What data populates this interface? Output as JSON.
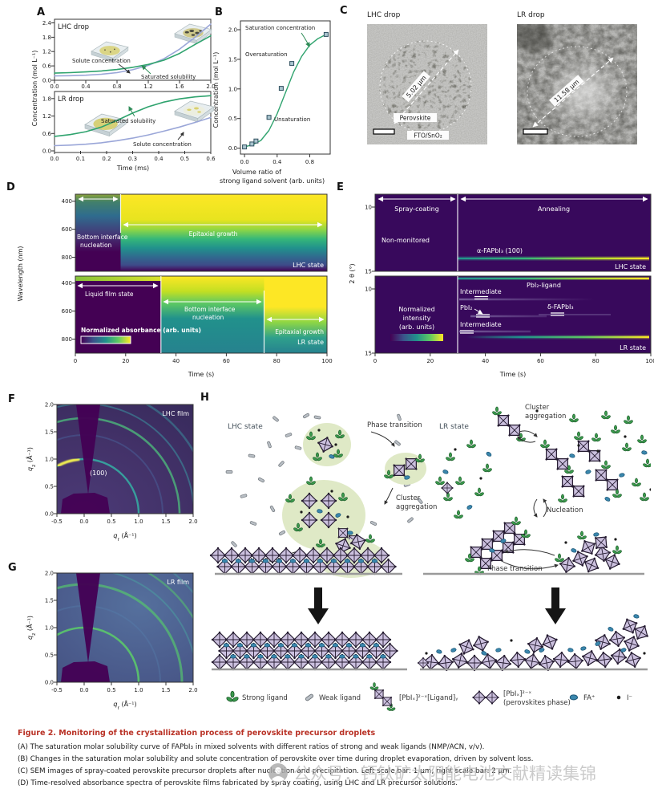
{
  "panels": {
    "a": "A",
    "b": "B",
    "c": "C",
    "d": "D",
    "e": "E",
    "f": "F",
    "g": "G",
    "h": "H"
  },
  "colors": {
    "caption_red": "#b93226",
    "curve_green": "#2fa36e",
    "curve_blue": "#9aa6d8",
    "viridis": [
      "#440154",
      "#3b528b",
      "#21918c",
      "#5ec962",
      "#fde725"
    ],
    "annotation_white": "#ffffff",
    "cluster_halo": "#dfe9c6",
    "strong_ligand_green": "#3a9a4c",
    "weak_ligand_gray": "#b9bfc5",
    "fa_blue": "#3a87ad",
    "octahedron_purple": "#cbc0de"
  },
  "panel_a": {
    "ylabel": "Concentration (mol L⁻¹)",
    "xlabel": "Time (ms)",
    "lhc": {
      "title": "LHC drop",
      "yticks": [
        "0.0",
        "0.6",
        "1.2",
        "1.8",
        "2.4"
      ],
      "xticks": [
        "0.0",
        "0.4",
        "0.8",
        "1.2",
        "1.6",
        "2.0"
      ],
      "solute_label": "Solute concentration",
      "saturated_label": "Saturated solubility"
    },
    "lr": {
      "title": "LR drop",
      "yticks": [
        "0.0",
        "0.6",
        "1.2",
        "1.8"
      ],
      "xticks": [
        "0.0",
        "0.1",
        "0.2",
        "0.3",
        "0.4",
        "0.5",
        "0.6"
      ],
      "saturated_label": "Saturated solubility",
      "solute_label": "Solute concentration"
    }
  },
  "panel_b": {
    "ylabel": "Concentration (mol L⁻¹)",
    "xlabel_line1": "Volume ratio of",
    "xlabel_line2": "strong ligand solvent (arb. units)",
    "yticks": [
      "0.0",
      "0.5",
      "1.0",
      "1.5",
      "2.0"
    ],
    "xticks": [
      "0.0",
      "0.4",
      "0.8"
    ],
    "saturation_label": "Saturation concentration",
    "oversaturation_label": "Oversaturation",
    "unsaturation_label": "Unsaturation"
  },
  "panel_c": {
    "lhc_title": "LHC drop",
    "lr_title": "LR drop",
    "lhc_diameter": "5.02 μm",
    "lr_diameter": "11.58 μm",
    "perovskite_label": "Perovskite",
    "substrate_label": "FTO/SnO₂"
  },
  "panel_d": {
    "ylabel": "Wavelength (nm)",
    "xlabel": "Time (s)",
    "yticks": [
      "400",
      "600",
      "800"
    ],
    "xticks": [
      "0",
      "20",
      "40",
      "60",
      "80",
      "100"
    ],
    "lhc": {
      "nucleation_l1": "Bottom interface",
      "nucleation_l2": "nucleation",
      "epitaxial": "Epitaxial growth",
      "state": "LHC state"
    },
    "lr": {
      "liquid": "Liquid film state",
      "nucleation_l1": "Bottom interface",
      "nucleation_l2": "nucleation",
      "epitaxial": "Epitaxial growth",
      "state": "LR state"
    },
    "colorbar_label": "Normalized absorbance (arb. units)"
  },
  "panel_e": {
    "ylabel": "2 θ (°)",
    "xlabel": "Time (s)",
    "yticks": [
      "10",
      "15"
    ],
    "xticks": [
      "0",
      "20",
      "40",
      "60",
      "80",
      "100"
    ],
    "lhc": {
      "spray": "Spray-coating",
      "annealing": "Annealing",
      "non_monitored": "Non-monitored",
      "alpha_peak": "α-FAPbI₃ (100)",
      "state": "LHC state"
    },
    "lr": {
      "pbi2_ligand": "PbI₂-ligand",
      "intermediate_1": "Intermediate",
      "pbi2": "PbI₂",
      "delta_phase": "δ-FAPbI₃",
      "intermediate_2": "Intermediate",
      "state": "LR state"
    },
    "colorbar_l1": "Normalized",
    "colorbar_l2": "intensity",
    "colorbar_l3": "(arb. units)"
  },
  "panel_f": {
    "title": "LHC film",
    "peak_label": "(100)",
    "ylabel_q": "q",
    "ylabel_sub": "z",
    "ylabel_unit": " (Å⁻¹)",
    "xlabel_q": "q",
    "xlabel_sub": "r",
    "xlabel_unit": " (Å⁻¹)",
    "yticks": [
      "0.0",
      "0.5",
      "1.0",
      "1.5",
      "2.0"
    ],
    "xticks": [
      "-0.5",
      "0.0",
      "0.5",
      "1.0",
      "1.5",
      "2.0"
    ]
  },
  "panel_g": {
    "title": "LR film",
    "ylabel_q": "q",
    "ylabel_sub": "z",
    "ylabel_unit": " (Å⁻¹)",
    "xlabel_q": "q",
    "xlabel_sub": "r",
    "xlabel_unit": " (Å⁻¹)",
    "yticks": [
      "0.0",
      "0.5",
      "1.0",
      "1.5",
      "2.0"
    ],
    "xticks": [
      "-0.5",
      "0.0",
      "0.5",
      "1.0",
      "1.5",
      "2.0"
    ]
  },
  "panel_h": {
    "lhc_state": "LHC state",
    "lr_state": "LR state",
    "phase_transition": "Phase transition",
    "cluster_l1": "Cluster",
    "cluster_l2": "aggregation",
    "nucleation": "Nucleation",
    "legend": {
      "strong_ligand": "Strong ligand",
      "weak_ligand": "Weak ligand",
      "complex": "[PbIₓ]²⁻ˣ[Ligand]ᵧ",
      "perovskite_l1": "[PbIₓ]²⁻ˣ",
      "perovskite_l2": "(perovskites phase)",
      "fa_cation": "FA⁺",
      "iodide": "I⁻"
    }
  },
  "caption": {
    "title": "Figure 2. Monitoring of the crystallization process of perovskite precursor droplets",
    "line_a": "(A) The saturation molar solubility curve of FAPbI₃ in mixed solvents with different ratios of strong and weak ligands (NMP/ACN, v/v).",
    "line_b": "(B) Changes in the saturation molar solubility and solute concentration of perovskite over time during droplet evaporation, driven by solvent loss.",
    "line_c": "(C) SEM images of spray-coated perovskite precursor droplets after nucleation and precipitation. Left scale bar: 1 μm; right scale bar: 2 μm.",
    "line_d": "(D) Time-resolved absorbance spectra of perovskite films fabricated by spray coating, using LHC and LR precursor solutions."
  },
  "watermark": {
    "text": "公众号：钙钛矿太阳能电池文献精读集锦"
  },
  "chart_data": [
    {
      "type": "line",
      "panel": "A-top",
      "title": "LHC drop",
      "xlabel": "Time (ms)",
      "ylabel": "Concentration (mol L⁻¹)",
      "xlim": [
        0,
        2.0
      ],
      "ylim": [
        0,
        2.55
      ],
      "series": [
        {
          "name": "Solute concentration",
          "x": [
            0,
            0.2,
            0.4,
            0.6,
            0.8,
            1.0,
            1.2,
            1.4,
            1.6,
            1.8,
            2.0
          ],
          "y": [
            0.18,
            0.19,
            0.21,
            0.25,
            0.32,
            0.44,
            0.62,
            0.9,
            1.3,
            1.8,
            2.35
          ]
        },
        {
          "name": "Saturated solubility",
          "x": [
            0,
            0.2,
            0.4,
            0.6,
            0.8,
            1.0,
            1.2,
            1.4,
            1.6,
            1.8,
            2.0
          ],
          "y": [
            0.3,
            0.32,
            0.35,
            0.39,
            0.45,
            0.54,
            0.66,
            0.84,
            1.12,
            1.5,
            1.86
          ]
        }
      ]
    },
    {
      "type": "line",
      "panel": "A-bottom",
      "title": "LR drop",
      "xlabel": "Time (ms)",
      "ylabel": "Concentration (mol L⁻¹)",
      "xlim": [
        0,
        0.6
      ],
      "ylim": [
        0,
        2.1
      ],
      "series": [
        {
          "name": "Saturated solubility",
          "x": [
            0,
            0.06,
            0.12,
            0.18,
            0.24,
            0.3,
            0.36,
            0.42,
            0.48,
            0.54,
            0.6
          ],
          "y": [
            0.5,
            0.56,
            0.66,
            0.82,
            1.05,
            1.3,
            1.52,
            1.68,
            1.79,
            1.86,
            1.9
          ]
        },
        {
          "name": "Solute concentration",
          "x": [
            0,
            0.06,
            0.12,
            0.18,
            0.24,
            0.3,
            0.36,
            0.42,
            0.48,
            0.54,
            0.6
          ],
          "y": [
            0.18,
            0.2,
            0.23,
            0.28,
            0.35,
            0.44,
            0.55,
            0.68,
            0.82,
            0.98,
            1.15
          ]
        }
      ]
    },
    {
      "type": "scatter-line",
      "panel": "B",
      "xlabel": "Volume ratio of strong ligand solvent (arb. units)",
      "ylabel": "Concentration (mol L⁻¹)",
      "xlim": [
        -0.05,
        1.05
      ],
      "ylim": [
        -0.1,
        2.15
      ],
      "x": [
        0,
        0.1,
        0.2,
        0.3,
        0.4,
        0.5,
        0.6,
        0.7,
        0.8,
        0.9,
        1.0
      ],
      "y": [
        0.02,
        0.06,
        0.13,
        0.3,
        0.58,
        0.93,
        1.28,
        1.55,
        1.74,
        1.85,
        1.92
      ],
      "points_x": [
        0.0,
        0.09,
        0.14,
        0.3,
        0.45,
        0.58,
        1.0
      ],
      "points_y": [
        0.02,
        0.07,
        0.12,
        0.52,
        1.01,
        1.43,
        1.92
      ],
      "annotations": [
        "Saturation concentration",
        "Oversaturation",
        "Unsaturation"
      ]
    },
    {
      "type": "heatmap",
      "panel": "D",
      "xlabel": "Time (s)",
      "ylabel": "Wavelength (nm)",
      "x_range": [
        0,
        100
      ],
      "y_range": [
        400,
        860
      ],
      "colorbar": "Normalized absorbance (arb. units)",
      "subpanels": [
        {
          "state": "LHC state",
          "events": [
            {
              "label": "Bottom interface nucleation",
              "t": [
                0,
                18
              ]
            },
            {
              "label": "Epitaxial growth",
              "t": [
                18,
                100
              ]
            }
          ]
        },
        {
          "state": "LR state",
          "events": [
            {
              "label": "Liquid film state",
              "t": [
                0,
                34
              ]
            },
            {
              "label": "Bottom interface nucleation",
              "t": [
                34,
                75
              ]
            },
            {
              "label": "Epitaxial growth",
              "t": [
                75,
                100
              ]
            }
          ]
        }
      ]
    },
    {
      "type": "heatmap",
      "panel": "E",
      "xlabel": "Time (s)",
      "ylabel": "2θ (°)",
      "x_range": [
        0,
        100
      ],
      "y_range": [
        9,
        15
      ],
      "colorbar": "Normalized intensity (arb. units)",
      "subpanels": [
        {
          "state": "LHC state",
          "phases": [
            "Spray-coating 0-30 s",
            "Annealing 30-100 s",
            "Non-monitored before 30 s",
            "α-FAPbI₃ (100) peak near 14° from 30 s"
          ]
        },
        {
          "state": "LR state",
          "phases": [
            "PbI₂-ligand near 9.3°",
            "Intermediate near 11.2°",
            "PbI₂ near 12.3°",
            "δ-FAPbI₃ near 12.4°",
            "Intermediate near 13.3°",
            "perovskite peak near 14° after ~50 s"
          ]
        }
      ]
    },
    {
      "type": "heatmap",
      "panel": "F",
      "title": "LHC film",
      "xlabel": "qr (Å⁻¹)",
      "ylabel": "qz (Å⁻¹)",
      "x_range": [
        -0.5,
        2.0
      ],
      "y_range": [
        0,
        2.0
      ],
      "rings_q": [
        1.0,
        1.45,
        1.75,
        2.0,
        2.3
      ],
      "annotations": [
        "(100) ring at q = 1.0"
      ]
    },
    {
      "type": "heatmap",
      "panel": "G",
      "title": "LR film",
      "xlabel": "qr (Å⁻¹)",
      "ylabel": "qz (Å⁻¹)",
      "x_range": [
        -0.5,
        2.0
      ],
      "y_range": [
        0,
        2.0
      ],
      "rings_q": [
        1.0,
        1.4,
        1.8,
        2.05,
        2.3
      ],
      "annotations": []
    }
  ]
}
